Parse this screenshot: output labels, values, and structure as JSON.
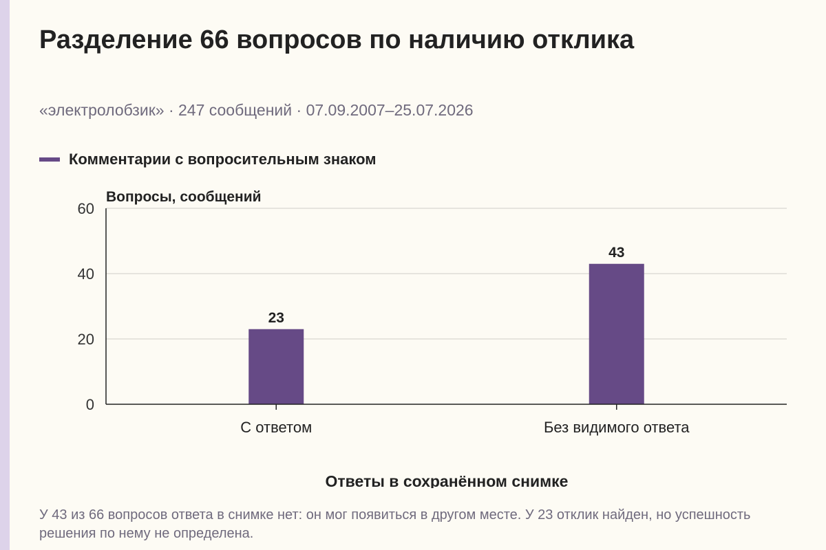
{
  "title": "Разделение 66 вопросов по наличию отклика",
  "subtitle": "«электролобзик» · 247 сообщений · 07.09.2007–25.07.2026",
  "footnote": "У 43 из 66 вопросов ответа в снимке нет: он мог появиться в другом месте. У 23 отклик найден, но успешность решения по нему не определена.",
  "colors": {
    "background": "#fdfbf4",
    "side_stripe": "#ddd3ea",
    "bar": "#664a86",
    "gridline": "#d9d6d0",
    "axis": "#222222",
    "muted_text": "#6f6a7d"
  },
  "chart_data": {
    "type": "bar",
    "categories": [
      "С ответом",
      "Без видимого ответа"
    ],
    "series": [
      {
        "name": "Комментарии с вопросительным знаком",
        "values": [
          23,
          43
        ],
        "color": "#664a86"
      }
    ],
    "ylabel": "Вопросы, сообщений",
    "xlabel": "Ответы в сохранённом снимке",
    "ylim": [
      0,
      60
    ],
    "yticks": [
      0,
      20,
      40,
      60
    ],
    "grid": true,
    "legend": "top-left",
    "data_labels": true
  }
}
